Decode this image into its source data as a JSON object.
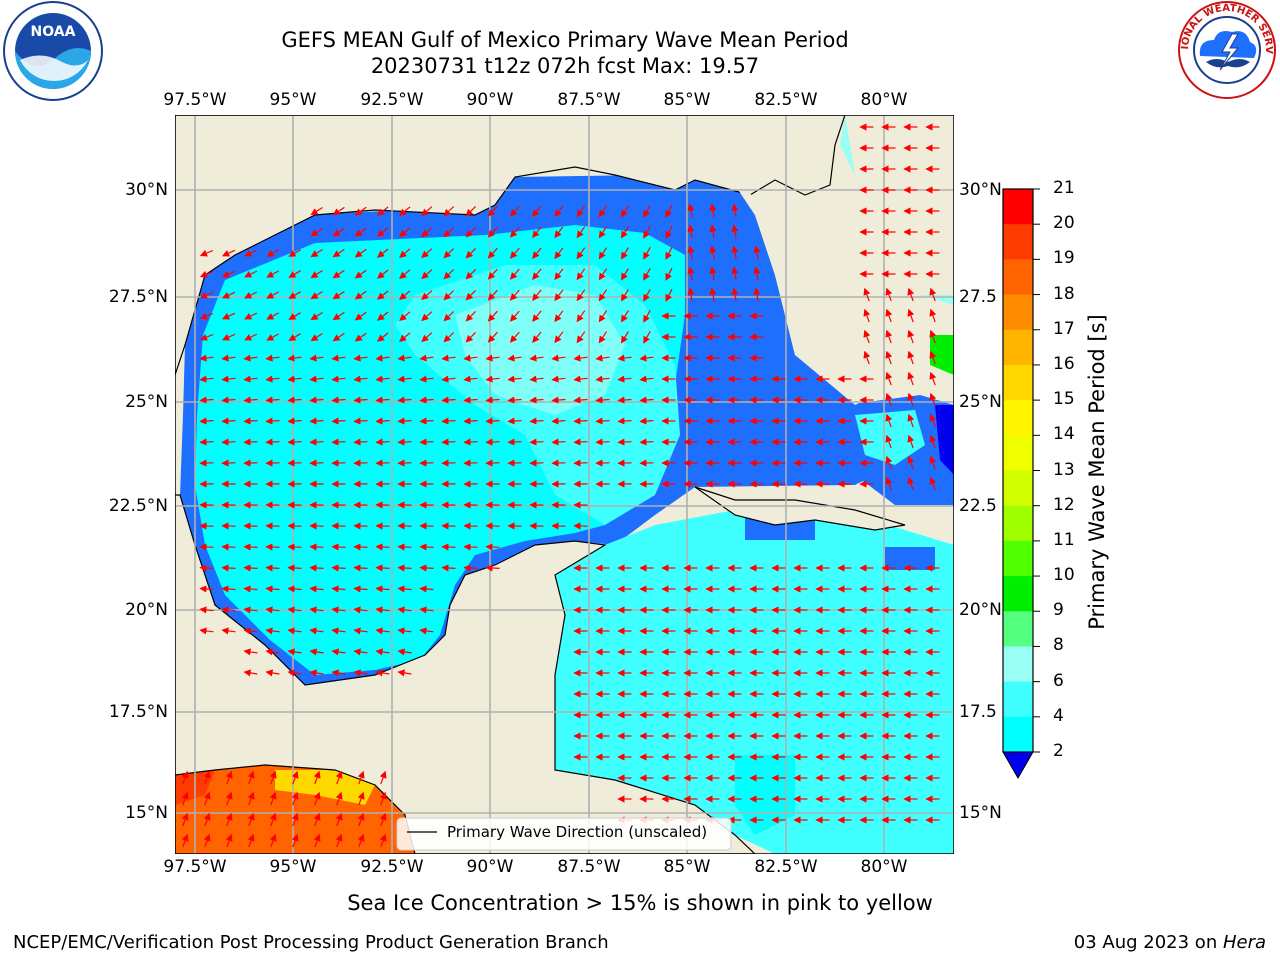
{
  "header": {
    "title_line1": "GEFS MEAN Gulf of Mexico Primary Wave Mean Period",
    "title_line2": "20230731 t12z 072h fcst   Max: 19.57"
  },
  "logos": {
    "left": {
      "text": "NOAA",
      "ring_text": "NATIONAL OCEANIC AND ATMOSPHERIC ADMINISTRATION · U.S. DEPARTMENT OF COMMERCE"
    },
    "right": {
      "ring_text": "NATIONAL WEATHER SERVICE"
    }
  },
  "map": {
    "lon_ticks": [
      "97.5°W",
      "95°W",
      "92.5°W",
      "90°W",
      "87.5°W",
      "85°W",
      "82.5°W",
      "80°W"
    ],
    "lat_ticks": [
      "30°N",
      "27.5°N",
      "25°N",
      "22.5°N",
      "20°N",
      "17.5°N",
      "15°N"
    ],
    "lat_ticks_right": [
      "30°N",
      "27.5",
      "25°N",
      "22.5",
      "20°N",
      "17.5",
      "15°N"
    ],
    "legend_label": "Primary Wave Direction (unscaled)",
    "colors": {
      "land": "#efedda",
      "ocean_2_4": "#1f6fff",
      "ocean_4_6": "#00ffff",
      "ocean_6_8": "#40ffff",
      "ocean_8_9": "#99fff5",
      "arrow": "#ff0000"
    }
  },
  "colorbar": {
    "label": "Primary Wave Mean Period [s]",
    "ticks": [
      "21",
      "20",
      "19",
      "18",
      "17",
      "16",
      "15",
      "14",
      "13",
      "12",
      "11",
      "10",
      "9",
      "8",
      "6",
      "4",
      "2"
    ],
    "colors": [
      "#ff0000",
      "#ff3c00",
      "#ff6400",
      "#ff8c00",
      "#ffb400",
      "#ffd800",
      "#fff500",
      "#f0ff00",
      "#d2ff00",
      "#a0ff00",
      "#50ff00",
      "#00ee00",
      "#55ff80",
      "#99fff5",
      "#40ffff",
      "#00ffff",
      "#1f6fff"
    ],
    "underflow_color": "#0000ee"
  },
  "note": "Sea Ice Concentration > 15% is shown in pink to yellow",
  "footer": {
    "left": "NCEP/EMC/Verification Post Processing Product Generation Branch",
    "date": "03 Aug 2023 on ",
    "machine": "Hera"
  }
}
